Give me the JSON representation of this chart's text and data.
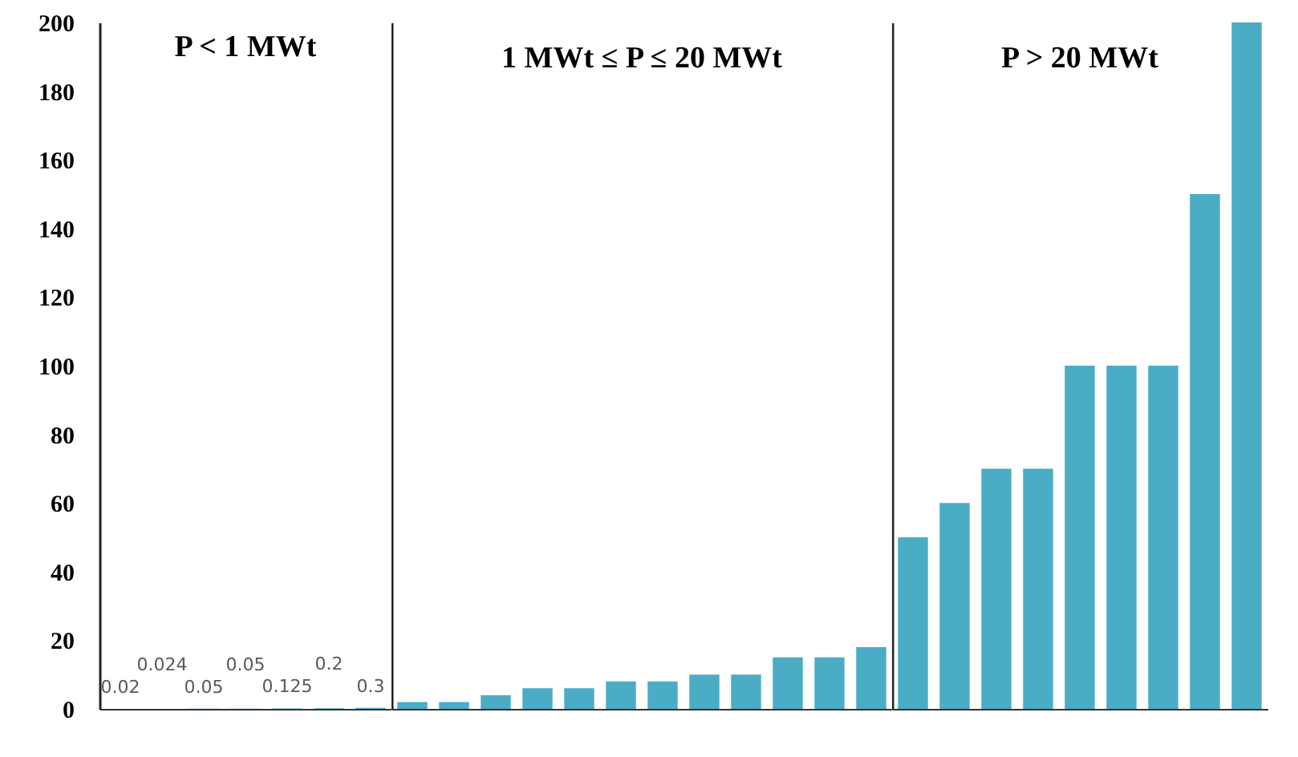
{
  "chart_data": [
    {
      "type": "bar",
      "title": "P < 1 MWt",
      "categories": [
        null,
        null,
        null,
        null,
        null,
        null,
        null
      ],
      "values": [
        0.02,
        0.024,
        0.05,
        0.05,
        0.125,
        0.2,
        0.3
      ],
      "value_labels": [
        "0.02",
        "0.024",
        "0.05",
        "0.05",
        "0.125",
        "0.2",
        "0.3"
      ],
      "color": "#4bacc6",
      "ylim": [
        0,
        200
      ],
      "yticks": [
        0,
        20,
        40,
        60,
        80,
        100,
        120,
        140,
        160,
        180,
        200
      ],
      "tick_labels": "y"
    },
    {
      "type": "bar",
      "title": "1 MWt ≤ P ≤ 20 MWt",
      "categories": [
        null,
        null,
        null,
        null,
        null,
        null,
        null,
        null,
        null,
        null,
        null,
        null
      ],
      "values": [
        2,
        2,
        4,
        6,
        6,
        8,
        8,
        10,
        10,
        15,
        15,
        18
      ],
      "color": "#4bacc6",
      "ylim": [
        0,
        200
      ],
      "yticks": [
        0,
        20,
        40,
        60,
        80,
        100,
        120,
        140,
        160,
        180,
        200
      ],
      "tick_labels": false
    },
    {
      "type": "bar",
      "title": "P > 20 MWt",
      "categories": [
        null,
        null,
        null,
        null,
        null,
        null,
        null,
        null,
        null
      ],
      "values": [
        50,
        60,
        70,
        70,
        100,
        100,
        100,
        150,
        200
      ],
      "color": "#4bacc6",
      "ylim": [
        0,
        200
      ],
      "yticks": [
        0,
        20,
        40,
        60,
        80,
        100,
        120,
        140,
        160,
        180,
        200
      ],
      "tick_labels": false
    }
  ]
}
